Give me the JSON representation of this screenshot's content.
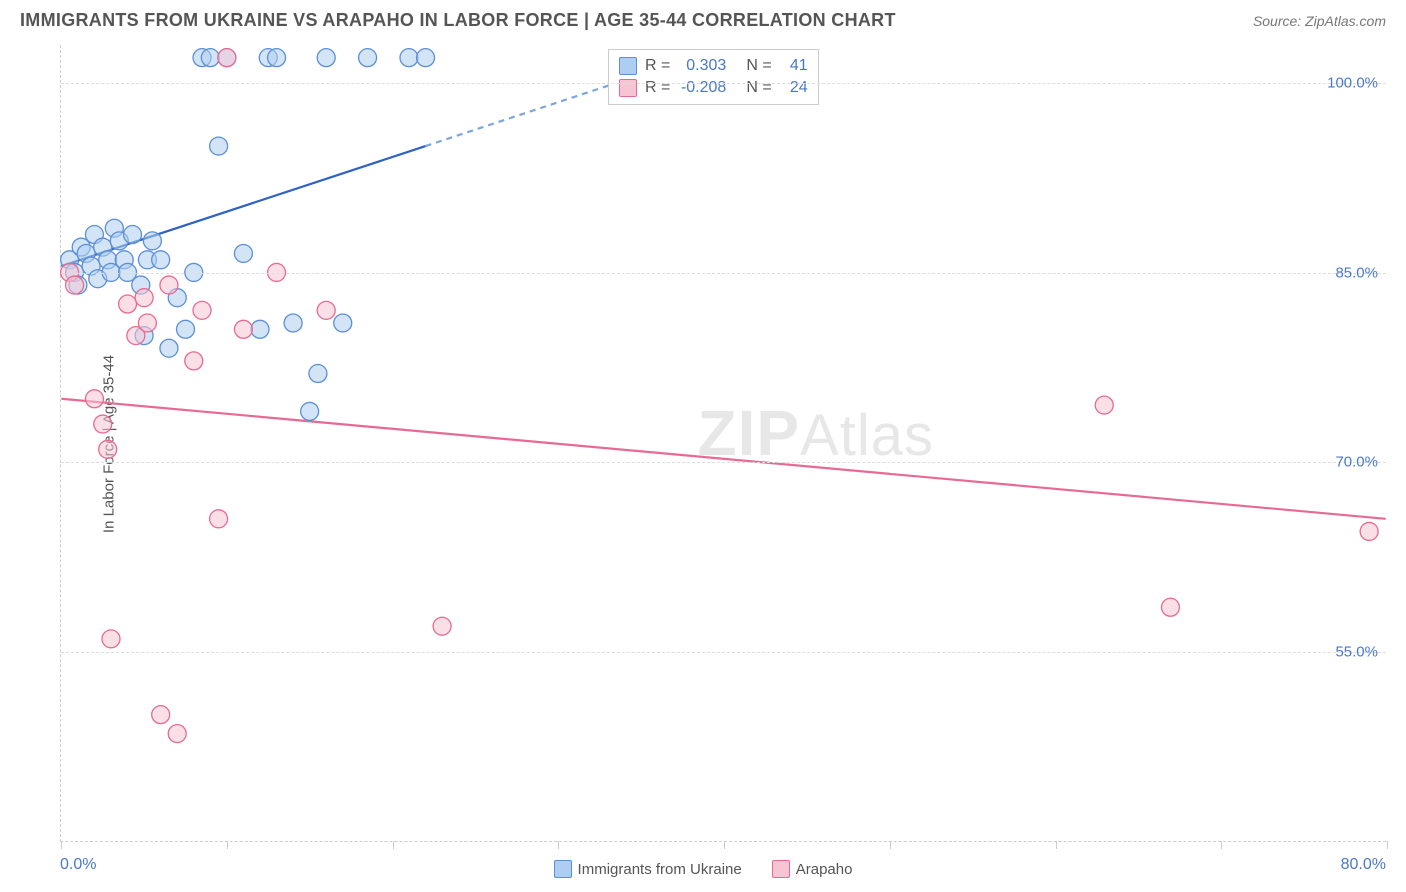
{
  "header": {
    "title": "IMMIGRANTS FROM UKRAINE VS ARAPAHO IN LABOR FORCE | AGE 35-44 CORRELATION CHART",
    "source": "Source: ZipAtlas.com"
  },
  "chart": {
    "type": "scatter",
    "ylabel": "In Labor Force | Age 35-44",
    "xlim": [
      0,
      80
    ],
    "ylim": [
      40,
      103
    ],
    "background_color": "#ffffff",
    "grid_color": "#dddddd",
    "axis_color": "#cccccc",
    "tick_color": "#4a78c9",
    "y_gridlines": [
      55,
      70,
      85,
      100
    ],
    "y_tick_labels": [
      "55.0%",
      "70.0%",
      "85.0%",
      "100.0%"
    ],
    "x_ticks": [
      0,
      10,
      20,
      30,
      40,
      50,
      60,
      70,
      80
    ],
    "x_axis_labels": {
      "left": "0.0%",
      "right": "80.0%"
    },
    "marker_radius": 9,
    "marker_opacity": 0.55,
    "trend_line_width": 2.2,
    "watermark": {
      "text_bold": "ZIP",
      "text_rest": "Atlas",
      "color": "#cccccc"
    },
    "stats_box": {
      "rows": [
        {
          "swatch_fill": "#aecdf0",
          "swatch_stroke": "#5b8fd6",
          "r_label": "R =",
          "r_val": "0.303",
          "n_label": "N =",
          "n_val": "41"
        },
        {
          "swatch_fill": "#f6c4d3",
          "swatch_stroke": "#e86a92",
          "r_label": "R =",
          "r_val": "-0.208",
          "n_label": "N =",
          "n_val": "24"
        }
      ]
    },
    "legend": [
      {
        "label": "Immigrants from Ukraine",
        "fill": "#aecdf0",
        "stroke": "#5b8fd6"
      },
      {
        "label": "Arapaho",
        "fill": "#f6c4d3",
        "stroke": "#e86a92"
      }
    ],
    "series": [
      {
        "name": "Immigrants from Ukraine",
        "color_fill": "#aecdf0",
        "color_stroke": "#5b8fd6",
        "trend": {
          "x1": 0,
          "y1": 85.5,
          "x2": 22,
          "y2": 95,
          "dash_x2": 37,
          "dash_y2": 101.5,
          "solid_color": "#2f62c4",
          "dash_color": "#7aa6e0"
        },
        "points": [
          [
            0.5,
            86
          ],
          [
            0.8,
            85
          ],
          [
            1,
            84
          ],
          [
            1.2,
            87
          ],
          [
            1.5,
            86.5
          ],
          [
            1.8,
            85.5
          ],
          [
            2,
            88
          ],
          [
            2.2,
            84.5
          ],
          [
            2.5,
            87
          ],
          [
            2.8,
            86
          ],
          [
            3,
            85
          ],
          [
            3.2,
            88.5
          ],
          [
            3.5,
            87.5
          ],
          [
            3.8,
            86
          ],
          [
            4,
            85
          ],
          [
            4.3,
            88
          ],
          [
            4.8,
            84
          ],
          [
            5,
            80
          ],
          [
            5.2,
            86
          ],
          [
            5.5,
            87.5
          ],
          [
            6,
            86
          ],
          [
            6.5,
            79
          ],
          [
            7,
            83
          ],
          [
            7.5,
            80.5
          ],
          [
            8,
            85
          ],
          [
            8.5,
            102
          ],
          [
            9,
            102
          ],
          [
            9.5,
            95
          ],
          [
            10,
            102
          ],
          [
            11,
            86.5
          ],
          [
            12,
            80.5
          ],
          [
            12.5,
            102
          ],
          [
            13,
            102
          ],
          [
            14,
            81
          ],
          [
            15,
            74
          ],
          [
            15.5,
            77
          ],
          [
            16,
            102
          ],
          [
            17,
            81
          ],
          [
            18.5,
            102
          ],
          [
            21,
            102
          ],
          [
            22,
            102
          ]
        ]
      },
      {
        "name": "Arapaho",
        "color_fill": "#f6c4d3",
        "color_stroke": "#e86a92",
        "trend": {
          "x1": 0,
          "y1": 75,
          "x2": 80,
          "y2": 65.5,
          "solid_color": "#e86a92"
        },
        "points": [
          [
            0.5,
            85
          ],
          [
            0.8,
            84
          ],
          [
            2,
            75
          ],
          [
            2.5,
            73
          ],
          [
            2.8,
            71
          ],
          [
            3,
            56
          ],
          [
            4,
            82.5
          ],
          [
            4.5,
            80
          ],
          [
            5,
            83
          ],
          [
            5.2,
            81
          ],
          [
            6,
            50
          ],
          [
            6.5,
            84
          ],
          [
            7,
            48.5
          ],
          [
            8,
            78
          ],
          [
            8.5,
            82
          ],
          [
            9.5,
            65.5
          ],
          [
            10,
            102
          ],
          [
            11,
            80.5
          ],
          [
            13,
            85
          ],
          [
            16,
            82
          ],
          [
            23,
            57
          ],
          [
            63,
            74.5
          ],
          [
            67,
            58.5
          ],
          [
            79,
            64.5
          ]
        ]
      }
    ]
  }
}
